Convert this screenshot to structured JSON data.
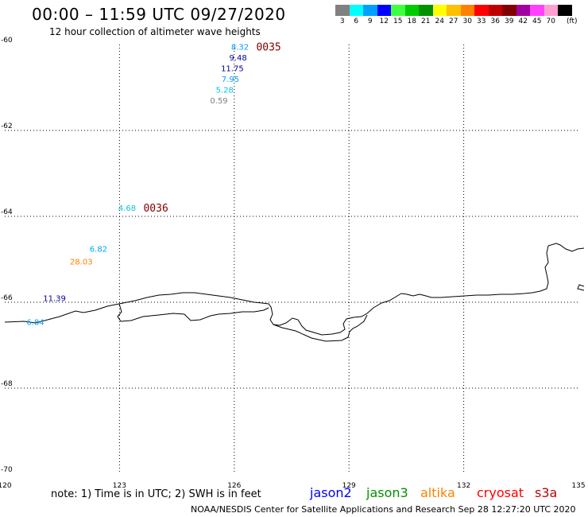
{
  "header": {
    "title": "00:00 – 11:59 UTC 09/27/2020",
    "subtitle": "12 hour collection of altimeter wave heights"
  },
  "legend": {
    "unit_label": "(ft)",
    "bins": [
      {
        "label": "3",
        "color": "#808080"
      },
      {
        "label": "6",
        "color": "#00ffff"
      },
      {
        "label": "9",
        "color": "#00a0ff"
      },
      {
        "label": "12",
        "color": "#0000ff"
      },
      {
        "label": "15",
        "color": "#40ff40"
      },
      {
        "label": "18",
        "color": "#00cc00"
      },
      {
        "label": "21",
        "color": "#009000"
      },
      {
        "label": "24",
        "color": "#ffff00"
      },
      {
        "label": "27",
        "color": "#ffc000"
      },
      {
        "label": "30",
        "color": "#ff8000"
      },
      {
        "label": "33",
        "color": "#ff0000"
      },
      {
        "label": "36",
        "color": "#c00000"
      },
      {
        "label": "39",
        "color": "#800000"
      },
      {
        "label": "42",
        "color": "#a000a0"
      },
      {
        "label": "45",
        "color": "#ff40ff"
      },
      {
        "label": "70",
        "color": "#ff9fd0"
      },
      {
        "label": "",
        "color": "#000000"
      }
    ]
  },
  "axes": {
    "x_ticks": [
      "120",
      "123",
      "126",
      "129",
      "132",
      "135"
    ],
    "y_ticks": [
      "-60",
      "-62",
      "-64",
      "-66",
      "-68",
      "-70"
    ]
  },
  "observations": [
    {
      "value": "8.32",
      "lon": 126.15,
      "lat": -60.05,
      "color": "#00a0ff"
    },
    {
      "value": "9.48",
      "lon": 126.1,
      "lat": -60.3,
      "color": "#0000a0"
    },
    {
      "value": "11.75",
      "lon": 125.95,
      "lat": -60.55,
      "color": "#0000a0"
    },
    {
      "value": "7.95",
      "lon": 125.9,
      "lat": -60.8,
      "color": "#00a0ff"
    },
    {
      "value": "5.28",
      "lon": 125.75,
      "lat": -61.05,
      "color": "#00c8e0"
    },
    {
      "value": "0.59",
      "lon": 125.6,
      "lat": -61.3,
      "color": "#808080"
    },
    {
      "value": "4.68",
      "lon": 123.2,
      "lat": -63.8,
      "color": "#00c8e0"
    },
    {
      "value": "6.82",
      "lon": 122.45,
      "lat": -64.75,
      "color": "#00a0ff"
    },
    {
      "value": "28.03",
      "lon": 122.0,
      "lat": -65.05,
      "color": "#ff8000"
    },
    {
      "value": "11.39",
      "lon": 121.3,
      "lat": -65.9,
      "color": "#0000a0"
    },
    {
      "value": "6.84",
      "lon": 120.8,
      "lat": -66.45,
      "color": "#00a0ff"
    }
  ],
  "time_labels": [
    {
      "text": "0035",
      "lon": 126.9,
      "lat": -60.05,
      "color": "#800000"
    },
    {
      "text": "0036",
      "lon": 123.95,
      "lat": -63.8,
      "color": "#800000"
    }
  ],
  "footer": {
    "note": "note: 1) Time is in UTC; 2) SWH is in feet",
    "satellites": [
      {
        "name": "jason2",
        "color": "#0000ff"
      },
      {
        "name": "jason3",
        "color": "#009000"
      },
      {
        "name": "altika",
        "color": "#ff8000"
      },
      {
        "name": "cryosat",
        "color": "#ff0000"
      },
      {
        "name": "s3a",
        "color": "#c00000"
      }
    ],
    "credit": "NOAA/NESDIS Center for Satellite Applications and Research    Sep 28 12:27:20 UTC 2020"
  }
}
